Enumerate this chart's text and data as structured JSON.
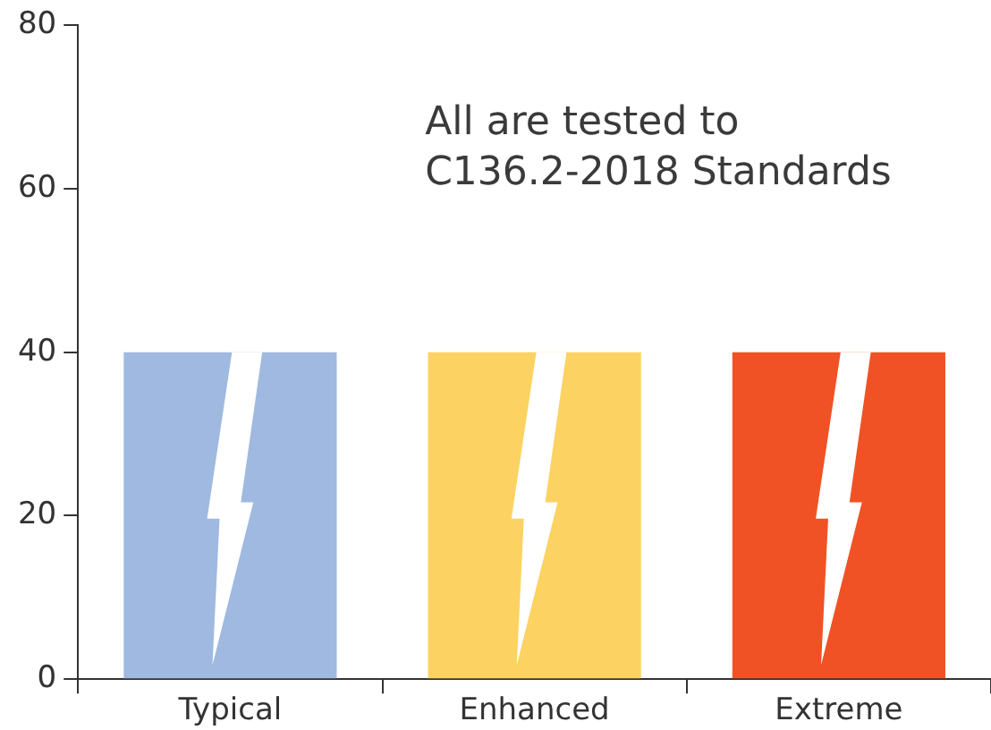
{
  "chart_data": {
    "type": "bar",
    "categories": [
      "Typical",
      "Enhanced",
      "Extreme"
    ],
    "values": [
      40,
      40,
      40
    ],
    "colors": [
      "#a0b9e0",
      "#fcd262",
      "#f05225"
    ],
    "ylim": [
      0,
      80
    ],
    "yticks": [
      0,
      20,
      40,
      60,
      80
    ],
    "grid": false,
    "legend": false,
    "annotations": [
      "All are tested to\nC136.2-2018 Standards"
    ]
  }
}
